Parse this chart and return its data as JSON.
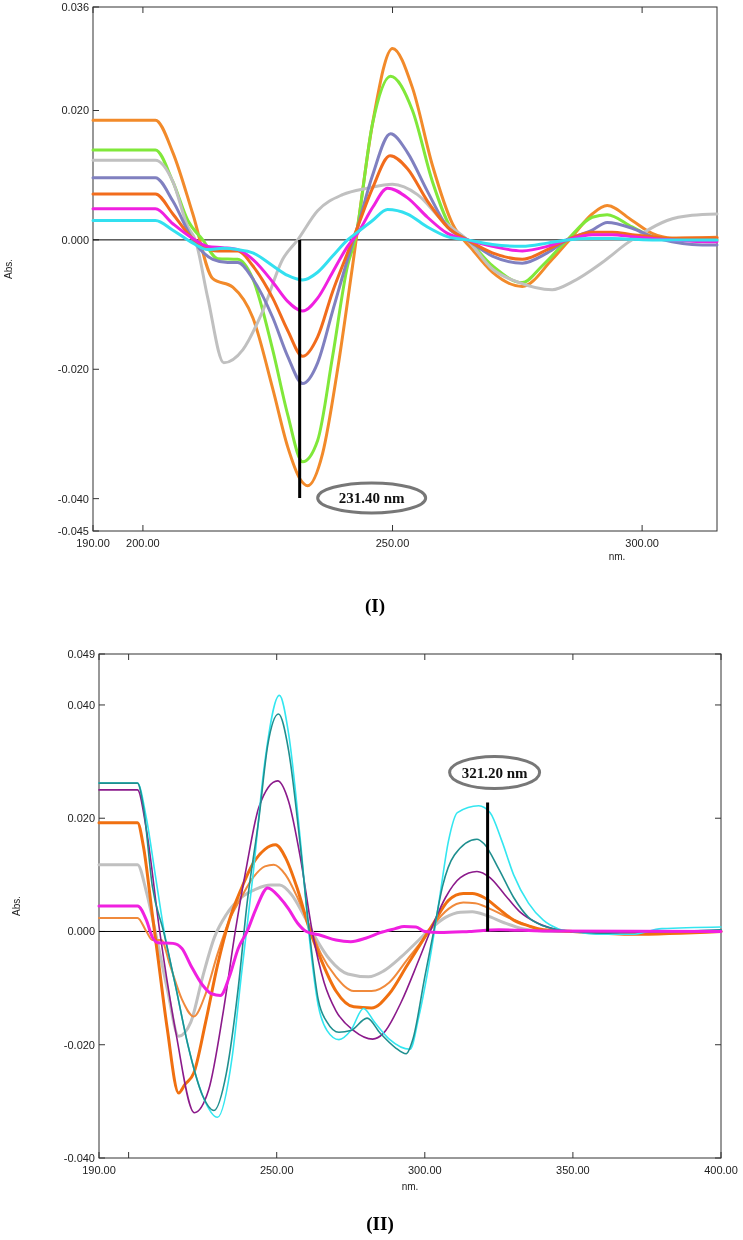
{
  "chart_data": [
    {
      "type": "line",
      "title": "(I)",
      "xlabel": "nm.",
      "ylabel": "Abs.",
      "xlim": [
        190,
        315
      ],
      "ylim": [
        -0.045,
        0.036
      ],
      "xticks": [
        {
          "value": 190,
          "label": "190.00"
        },
        {
          "value": 200,
          "label": "200.00"
        },
        {
          "value": 250,
          "label": "250.00"
        },
        {
          "value": 300,
          "label": "300.00"
        }
      ],
      "yticks": [
        {
          "value": 0.036,
          "label": "0.036"
        },
        {
          "value": 0.02,
          "label": "0.020"
        },
        {
          "value": 0,
          "label": "0.000"
        },
        {
          "value": -0.02,
          "label": "-0.020"
        },
        {
          "value": -0.04,
          "label": "-0.040"
        },
        {
          "value": -0.045,
          "label": "-0.045"
        }
      ],
      "ref_lines": [
        {
          "axis": "y",
          "value": 0,
          "color": "#000000"
        },
        {
          "axis": "x",
          "value": 231.4,
          "label": "231.40 nm",
          "color": "#000000"
        }
      ],
      "series": [
        {
          "color": "#f28a2a",
          "x": [
            190,
            202.5,
            206,
            210,
            214,
            218,
            222,
            226,
            229,
            231.5,
            233,
            236,
            239,
            242,
            246,
            250,
            254,
            258,
            262,
            266,
            270,
            276,
            282,
            286,
            290,
            293,
            298,
            302,
            306,
            310,
            315
          ],
          "values": [
            0.0185,
            0.0185,
            0.0135,
            0.004,
            -0.006,
            -0.0073,
            -0.012,
            -0.023,
            -0.032,
            -0.037,
            -0.038,
            -0.033,
            -0.02,
            -0.004,
            0.018,
            0.0296,
            0.0235,
            0.0115,
            0.0025,
            -0.0015,
            -0.005,
            -0.0072,
            -0.003,
            0.0005,
            0.004,
            0.0053,
            0.003,
            0.001,
            0.0003,
            0.0003,
            0.0004
          ]
        },
        {
          "color": "#80e83a",
          "x": [
            190,
            202.5,
            206,
            209,
            212,
            215,
            219,
            222,
            226,
            229,
            232,
            235,
            238,
            241,
            242.5,
            246,
            249.6,
            254,
            258,
            262,
            265,
            270,
            276,
            280,
            285,
            290,
            293,
            298,
            302,
            306,
            315
          ],
          "values": [
            0.0139,
            0.0139,
            0.009,
            0.003,
            0,
            -0.0029,
            -0.003,
            -0.006,
            -0.017,
            -0.027,
            -0.0343,
            -0.031,
            -0.018,
            -0.004,
            0,
            0.018,
            0.0253,
            0.02,
            0.009,
            0.0015,
            0,
            -0.004,
            -0.0066,
            -0.004,
            0,
            0.0035,
            0.0039,
            0.002,
            0.0005,
            0,
            0
          ]
        },
        {
          "color": "#c0c0c0",
          "x": [
            190,
            202.5,
            206,
            209,
            210.5,
            213,
            216.2,
            220,
            224,
            228,
            231,
            235,
            240,
            245,
            250,
            255,
            260,
            265,
            270,
            275,
            282,
            286,
            292,
            297,
            300,
            305,
            310,
            315
          ],
          "values": [
            0.0123,
            0.0123,
            0.009,
            0.002,
            0,
            -0.009,
            -0.019,
            -0.017,
            -0.011,
            -0.003,
            0,
            0.0045,
            0.007,
            0.008,
            0.0086,
            0.007,
            0.003,
            0,
            -0.0045,
            -0.0065,
            -0.0077,
            -0.0065,
            -0.0035,
            -0.0005,
            0.001,
            0.003,
            0.0038,
            0.004
          ]
        },
        {
          "color": "#8080c0",
          "x": [
            190,
            202.5,
            206,
            210,
            214,
            217,
            219,
            222,
            226,
            229,
            232,
            235,
            238,
            241,
            243,
            246,
            249.6,
            253,
            257,
            261,
            265,
            270,
            276,
            281,
            285,
            290,
            293,
            298,
            302,
            306,
            310,
            315
          ],
          "values": [
            0.0096,
            0.0096,
            0.006,
            0,
            -0.003,
            -0.0035,
            -0.0035,
            -0.006,
            -0.012,
            -0.018,
            -0.0222,
            -0.019,
            -0.011,
            -0.003,
            0.002,
            0.01,
            0.0164,
            0.0135,
            0.0075,
            0.002,
            0,
            -0.0025,
            -0.0036,
            -0.002,
            0,
            0.0015,
            0.0027,
            0.0018,
            0.0005,
            -0.0003,
            -0.0007,
            -0.0008
          ]
        },
        {
          "color": "#f26c1c",
          "x": [
            190,
            202.5,
            206,
            209,
            212,
            215,
            219,
            222,
            226,
            229,
            232,
            235,
            238,
            241,
            243,
            246,
            249.5,
            253,
            257,
            261,
            265,
            270,
            276,
            281,
            285,
            290,
            294,
            298,
            302,
            306,
            310,
            315
          ],
          "values": [
            0.0071,
            0.0071,
            0.004,
            0.001,
            -0.001,
            -0.0017,
            -0.0017,
            -0.004,
            -0.009,
            -0.014,
            -0.018,
            -0.015,
            -0.008,
            -0.002,
            0.002,
            0.008,
            0.013,
            0.011,
            0.006,
            0.002,
            0,
            -0.002,
            -0.003,
            -0.0015,
            0,
            0.0012,
            0.0012,
            0.0008,
            0.0005,
            0.0002,
            0.0003,
            0.0003
          ]
        },
        {
          "color": "#f020e0",
          "x": [
            190,
            202.5,
            206,
            210,
            213,
            216,
            219,
            222,
            226,
            229,
            232,
            235,
            238,
            241,
            243,
            246,
            249,
            253,
            257,
            261,
            265,
            270,
            276,
            281,
            285,
            290,
            294,
            298,
            302,
            306,
            310,
            315
          ],
          "values": [
            0.0048,
            0.0048,
            0.0025,
            0.0002,
            -0.001,
            -0.0012,
            -0.0015,
            -0.003,
            -0.0065,
            -0.0095,
            -0.011,
            -0.009,
            -0.005,
            -0.001,
            0.001,
            0.005,
            0.008,
            0.0065,
            0.0035,
            0.001,
            0,
            -0.001,
            -0.0017,
            -0.001,
            0,
            0.0008,
            0.0008,
            0.0005,
            0.0002,
            0,
            -0.0002,
            -0.0003
          ]
        },
        {
          "color": "#33e0f0",
          "x": [
            190,
            202.5,
            206,
            210,
            213,
            216,
            219,
            222,
            226,
            229,
            232,
            235,
            238,
            241,
            243,
            246,
            249,
            253,
            257,
            261,
            265,
            270,
            276,
            281,
            285,
            290,
            294,
            298,
            302,
            306,
            310,
            315
          ],
          "values": [
            0.003,
            0.003,
            0.0015,
            -0.0005,
            -0.0015,
            -0.0013,
            -0.0015,
            -0.002,
            -0.004,
            -0.0055,
            -0.0062,
            -0.005,
            -0.0025,
            0,
            0.0012,
            0.003,
            0.0047,
            0.004,
            0.002,
            0.0005,
            0,
            -0.0007,
            -0.001,
            -0.0005,
            0,
            0.0002,
            0.0002,
            0.0001,
            0,
            0,
            0,
            0
          ]
        }
      ]
    },
    {
      "type": "line",
      "title": "(II)",
      "xlabel": "nm.",
      "ylabel": "Abs.",
      "xlim": [
        190,
        400
      ],
      "ylim": [
        -0.04,
        0.049
      ],
      "xticks": [
        {
          "value": 190,
          "label": "190.00"
        },
        {
          "value": 200,
          "label": null
        },
        {
          "value": 250,
          "label": "250.00"
        },
        {
          "value": 300,
          "label": "300.00"
        },
        {
          "value": 350,
          "label": "350.00"
        },
        {
          "value": 400,
          "label": "400.00"
        }
      ],
      "yticks": [
        {
          "value": 0.049,
          "label": "0.049"
        },
        {
          "value": 0.04,
          "label": "0.040"
        },
        {
          "value": 0.02,
          "label": "0.020"
        },
        {
          "value": 0,
          "label": "0.000"
        },
        {
          "value": -0.02,
          "label": "-0.020"
        },
        {
          "value": -0.04,
          "label": "-0.040"
        }
      ],
      "ref_lines": [
        {
          "axis": "y",
          "value": 0,
          "color": "#000000"
        },
        {
          "axis": "x",
          "value": 321.2,
          "label": "321.20 nm",
          "color": "#000000"
        }
      ],
      "series": [
        {
          "color": "#c0c0c0",
          "x": [
            190,
            203,
            206,
            209,
            213,
            216.9,
            221,
            225,
            229,
            233,
            238,
            243,
            248,
            251,
            255,
            259,
            263,
            268,
            274,
            281,
            286,
            292,
            298,
            302,
            307,
            312,
            316,
            321,
            327,
            333,
            340,
            350,
            400
          ],
          "values": [
            0.0118,
            0.0118,
            0.007,
            0,
            -0.01,
            -0.0185,
            -0.016,
            -0.008,
            -0.001,
            0.003,
            0.006,
            0.0075,
            0.0082,
            0.0082,
            0.0065,
            0.003,
            -0.001,
            -0.005,
            -0.0075,
            -0.008,
            -0.007,
            -0.0045,
            -0.0015,
            0.0005,
            0.0025,
            0.0034,
            0.0035,
            0.0028,
            0.0015,
            0.0005,
            0.0001,
            0,
            0
          ]
        },
        {
          "color": "#f08a3c",
          "x": [
            190,
            203,
            206,
            208,
            211,
            214,
            218,
            222,
            226,
            230,
            234,
            238,
            242,
            246,
            249,
            253,
            257,
            261,
            265,
            270,
            276,
            282,
            288,
            294,
            300,
            303,
            308,
            313,
            317,
            322,
            328,
            335,
            340,
            350,
            370,
            400
          ],
          "values": [
            0.0024,
            0.0024,
            0,
            -0.0015,
            -0.0015,
            -0.006,
            -0.012,
            -0.015,
            -0.011,
            -0.004,
            0.002,
            0.006,
            0.0095,
            0.0115,
            0.0118,
            0.01,
            0.006,
            0.001,
            -0.004,
            -0.008,
            -0.0105,
            -0.0105,
            -0.009,
            -0.005,
            -0.001,
            0.0012,
            0.004,
            0.0051,
            0.005,
            0.004,
            0.0025,
            0.001,
            0.0003,
            0,
            -0.0003,
            0
          ]
        },
        {
          "color": "#f07010",
          "x": [
            190,
            203,
            205,
            208,
            210,
            213,
            216.9,
            219,
            222,
            226,
            230,
            234,
            238,
            242,
            246,
            249.6,
            253,
            257,
            261,
            265,
            270,
            276,
            282,
            288,
            294,
            300,
            303,
            308,
            313,
            316,
            320,
            325,
            330,
            335,
            340,
            350,
            370,
            400
          ],
          "values": [
            0.0192,
            0.0192,
            0.015,
            0.003,
            -0.005,
            -0.017,
            -0.0285,
            -0.027,
            -0.025,
            -0.016,
            -0.006,
            0.002,
            0.0075,
            0.012,
            0.0145,
            0.0153,
            0.013,
            0.0075,
            0.0005,
            -0.005,
            -0.0105,
            -0.0133,
            -0.0135,
            -0.011,
            -0.006,
            -0.001,
            0.0015,
            0.0055,
            0.0067,
            0.0067,
            0.006,
            0.004,
            0.002,
            0.001,
            0.0003,
            0,
            -0.0005,
            0
          ]
        },
        {
          "color": "#8b1a8b",
          "x": [
            190,
            203,
            206,
            210.5,
            216,
            222.2,
            227,
            232,
            236,
            240,
            244,
            250.3,
            254,
            258,
            262,
            266,
            270,
            276,
            282.4,
            286,
            292,
            298,
            303,
            307,
            312,
            317.6,
            322,
            327,
            332,
            338,
            345,
            350,
            360,
            380,
            400
          ],
          "values": [
            0.025,
            0.025,
            0.018,
            0,
            -0.018,
            -0.032,
            -0.028,
            -0.014,
            0,
            0.012,
            0.022,
            0.0266,
            0.023,
            0.013,
            0,
            -0.009,
            -0.014,
            -0.0175,
            -0.019,
            -0.018,
            -0.0125,
            -0.005,
            0.0015,
            0.006,
            0.0095,
            0.0106,
            0.0095,
            0.0065,
            0.0035,
            0.0015,
            0.0003,
            0,
            -0.0003,
            0,
            0.0002
          ]
        },
        {
          "color": "#33e6f0",
          "x": [
            190,
            203,
            206,
            209,
            212,
            216,
            220,
            225,
            230,
            235,
            238,
            242,
            246,
            250.9,
            254,
            258,
            261,
            264,
            267,
            271,
            275,
            279.3,
            283,
            288,
            295,
            298,
            302,
            305,
            308,
            311,
            318.2,
            322,
            326,
            330,
            335,
            340,
            345,
            350,
            360,
            370,
            380,
            400
          ],
          "values": [
            0.0262,
            0.0262,
            0.02,
            0.01,
            0,
            -0.01,
            -0.02,
            -0.029,
            -0.0328,
            -0.022,
            -0.008,
            0.01,
            0.03,
            0.0417,
            0.035,
            0.016,
            -0.001,
            -0.013,
            -0.0175,
            -0.0191,
            -0.0175,
            -0.0136,
            -0.016,
            -0.019,
            -0.0208,
            -0.015,
            -0.004,
            0.006,
            0.016,
            0.021,
            0.0222,
            0.021,
            0.016,
            0.01,
            0.005,
            0.002,
            0.0005,
            0,
            -0.0005,
            -0.0005,
            0.0005,
            0.0008
          ]
        },
        {
          "color": "#1f8f8f",
          "x": [
            190,
            203,
            205,
            208,
            211.8,
            216,
            220,
            225,
            228.8,
            233,
            237,
            240,
            244,
            247,
            250.6,
            254,
            258,
            261,
            264,
            267,
            271,
            275,
            280.5,
            285,
            290,
            293.7,
            296,
            300,
            303,
            306,
            310,
            317.6,
            320,
            325,
            330,
            335,
            340,
            345,
            350,
            360,
            370,
            380,
            400
          ],
          "values": [
            0.0262,
            0.0262,
            0.022,
            0.008,
            0,
            -0.01,
            -0.02,
            -0.029,
            -0.0316,
            -0.025,
            -0.01,
            0.005,
            0.02,
            0.033,
            0.0384,
            0.032,
            0.015,
            0,
            -0.012,
            -0.016,
            -0.0178,
            -0.0175,
            -0.0153,
            -0.018,
            -0.0205,
            -0.0216,
            -0.019,
            -0.008,
            0,
            0.008,
            0.0135,
            0.0163,
            0.0155,
            0.011,
            0.006,
            0.0025,
            0.001,
            0.0003,
            0,
            -0.0003,
            0,
            0,
            0.0003
          ]
        },
        {
          "color": "#f020e0",
          "x": [
            190,
            203,
            206,
            208,
            210,
            215,
            218,
            221,
            225,
            228,
            231,
            234,
            237,
            240,
            243,
            247,
            251,
            254,
            257,
            260,
            265,
            270,
            275,
            280,
            285,
            290,
            293,
            297,
            300,
            305,
            315,
            325,
            340,
            400
          ],
          "values": [
            0.0045,
            0.0045,
            0.002,
            -0.001,
            -0.002,
            -0.0021,
            -0.003,
            -0.006,
            -0.0095,
            -0.011,
            -0.0113,
            -0.008,
            -0.003,
            0,
            0.004,
            0.0077,
            0.006,
            0.004,
            0.0015,
            0,
            -0.0007,
            -0.0015,
            -0.0018,
            -0.0012,
            -0.0002,
            0.0005,
            0.0009,
            0.0008,
            0,
            -0.0002,
            0,
            0.0003,
            0.0001,
            0
          ]
        }
      ]
    }
  ]
}
